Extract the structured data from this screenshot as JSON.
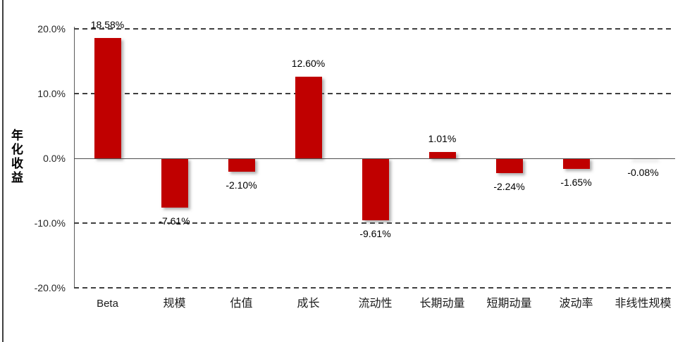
{
  "chart_data": {
    "type": "bar",
    "categories": [
      "Beta",
      "规模",
      "估值",
      "成长",
      "流动性",
      "长期动量",
      "短期动量",
      "波动率",
      "非线性规模"
    ],
    "values": [
      18.58,
      -7.61,
      -2.1,
      12.6,
      -9.61,
      1.01,
      -2.24,
      -1.65,
      -0.08
    ],
    "value_labels": [
      "18.58%",
      "-7.61%",
      "-2.10%",
      "12.60%",
      "-9.61%",
      "1.01%",
      "-2.24%",
      "-1.65%",
      "-0.08%"
    ],
    "ylabel": "年化收益",
    "xlabel": "",
    "yticks": [
      {
        "value": 20,
        "label": "20.0%"
      },
      {
        "value": 10,
        "label": "10.0%"
      },
      {
        "value": 0,
        "label": "0.0%"
      },
      {
        "value": -10,
        "label": "-10.0%"
      },
      {
        "value": -20,
        "label": "-20.0%"
      }
    ],
    "ylim": [
      -20,
      20
    ],
    "grid": "horizontal-dashed",
    "legend": "none",
    "colors": {
      "bar": "#c00000",
      "gridline": "#3f3f3f",
      "axis_line": "#5a5a5a",
      "tick_text": "#262626",
      "label_text": "#000000"
    }
  }
}
